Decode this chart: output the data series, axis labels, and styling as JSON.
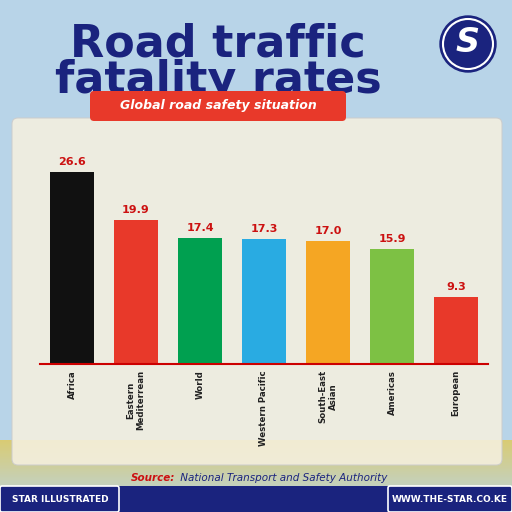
{
  "title_line1": "Road traffic",
  "title_line2": "fatality rates",
  "subtitle": "Global road safety situation",
  "categories": [
    "Africa",
    "Eastern\nMediterrean",
    "World",
    "Western Pacific",
    "South-East\nAsian",
    "Americas",
    "European"
  ],
  "values": [
    26.6,
    19.9,
    17.4,
    17.3,
    17.0,
    15.9,
    9.3
  ],
  "bar_colors": [
    "#111111",
    "#e8392a",
    "#00a050",
    "#29abe2",
    "#f5a623",
    "#7dc144",
    "#e8392a"
  ],
  "value_color": "#cc1111",
  "title_color": "#1a237e",
  "subtitle_bg": "#e8392a",
  "subtitle_color": "#ffffff",
  "source_label": "Source:",
  "source_label_color": "#cc1111",
  "source_rest": " National Transport and Safety Authority",
  "source_rest_color": "#1a237e",
  "footer_left": "STAR ILLUSTRATED",
  "footer_right": "WWW.THE-STAR.CO.KE",
  "footer_bg": "#1a237e",
  "footer_color": "#ffffff",
  "bg_color": "#b8d4e8",
  "chart_bg": "#f5f0e0",
  "chart_edge": "#cccccc",
  "baseline_color": "#cc0000",
  "bottom_yellow": "#f0d060",
  "ylim": [
    0,
    30
  ],
  "logo_bg": "#1a237e",
  "logo_text": "S",
  "logo_color": "#ffffff"
}
